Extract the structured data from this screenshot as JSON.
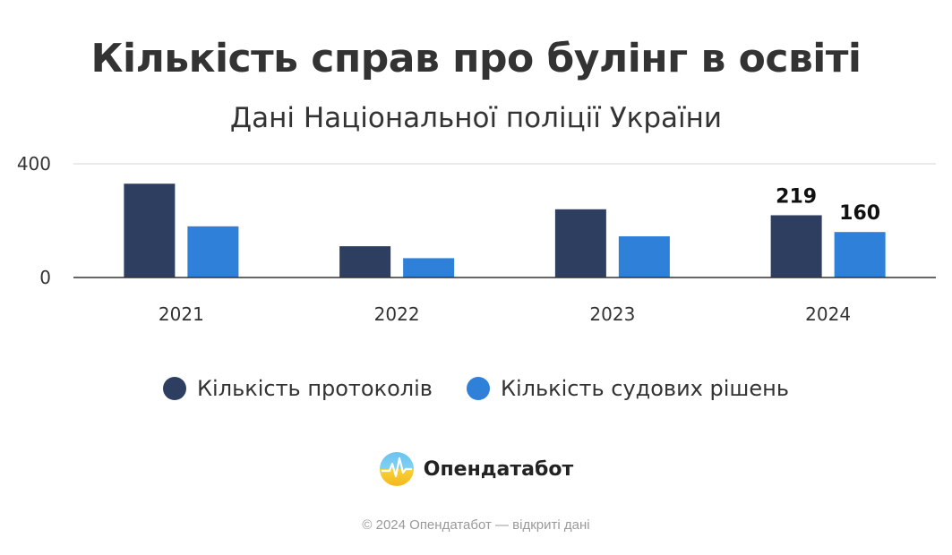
{
  "chart_data": {
    "type": "bar",
    "title": "Кількість справ про булінг в освіті",
    "subtitle": "Дані Національної поліції України",
    "categories": [
      "2021",
      "2022",
      "2023",
      "2024"
    ],
    "series": [
      {
        "name": "Кількість протоколів",
        "values": [
          330,
          110,
          240,
          219
        ],
        "color": "#2e3e60"
      },
      {
        "name": "Кількість судових рішень",
        "values": [
          180,
          68,
          145,
          160
        ],
        "color": "#2f80d9"
      }
    ],
    "data_labels": [
      {
        "category": "2024",
        "series": 0,
        "text": "219"
      },
      {
        "category": "2024",
        "series": 1,
        "text": "160"
      }
    ],
    "y_ticks": [
      "0",
      "400"
    ],
    "ylim": [
      0,
      400
    ],
    "grid": true,
    "legend": "bottom-center"
  },
  "brand": {
    "name": "Опендатабот",
    "logo_icon": "opendatabot-logo-icon"
  },
  "footer": {
    "text": "© 2024 Опендатабот — відкриті дані"
  }
}
